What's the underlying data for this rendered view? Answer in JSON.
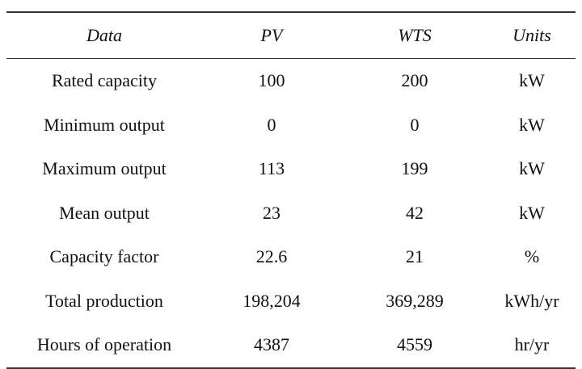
{
  "table": {
    "header": [
      "Data",
      "PV",
      "WTS",
      "Units"
    ],
    "rows": [
      [
        "Rated capacity",
        "100",
        "200",
        "kW"
      ],
      [
        "Minimum output",
        "0",
        "0",
        "kW"
      ],
      [
        "Maximum output",
        "113",
        "199",
        "kW"
      ],
      [
        "Mean output",
        "23",
        "42",
        "kW"
      ],
      [
        "Capacity factor",
        "22.6",
        "21",
        "%"
      ],
      [
        "Total production",
        "198,204",
        "369,289",
        "kWh/yr"
      ],
      [
        "Hours of operation",
        "4387",
        "4559",
        "hr/yr"
      ]
    ]
  }
}
